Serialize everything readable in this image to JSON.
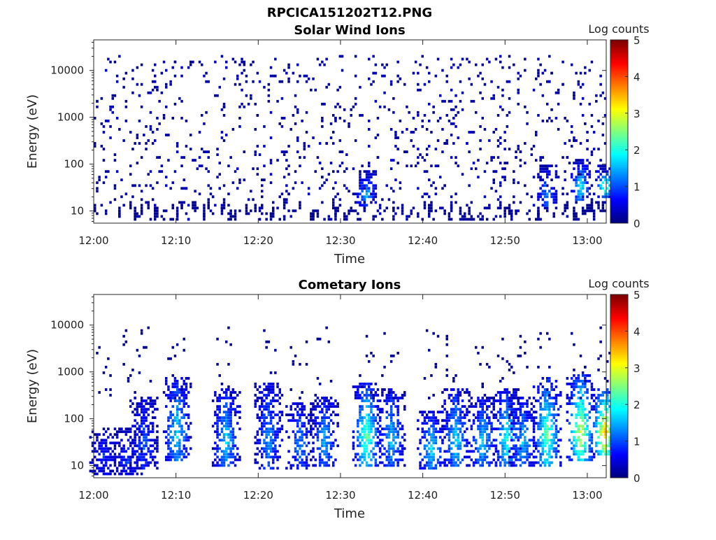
{
  "figure": {
    "title": "RPCICA151202T12.PNG"
  },
  "chart_data": [
    {
      "type": "heatmap",
      "title": "Solar Wind Ions",
      "xlabel": "Time",
      "ylabel": "Energy (eV)",
      "x_range": [
        "12:00",
        "13:02"
      ],
      "xticks": [
        "12:00",
        "12:10",
        "12:20",
        "12:30",
        "12:40",
        "12:50",
        "13:00"
      ],
      "yscale": "log",
      "ylim": [
        5.5,
        45000
      ],
      "yticks": [
        "10",
        "100",
        "1000",
        "10000"
      ],
      "colorbar": {
        "label": "Log counts",
        "range": [
          0,
          5
        ],
        "ticks": [
          "0",
          "1",
          "2",
          "3",
          "4",
          "5"
        ],
        "colormap": "jet"
      },
      "description_features": [
        {
          "time": "12:33",
          "energy_eV": [
            15,
            45
          ],
          "log_counts": 1.5
        },
        {
          "time": "12:55",
          "energy_eV": [
            15,
            60
          ],
          "log_counts": 1.2
        },
        {
          "time": "12:59",
          "energy_eV": [
            20,
            80
          ],
          "log_counts": 1.8
        },
        {
          "time": "13:02",
          "energy_eV": [
            25,
            60
          ],
          "log_counts": 2.5
        }
      ],
      "background": {
        "energy_eV": [
          6,
          20000
        ],
        "log_counts": 0.1
      }
    },
    {
      "type": "heatmap",
      "title": "Cometary Ions",
      "xlabel": "Time",
      "ylabel": "Energy (eV)",
      "x_range": [
        "12:00",
        "13:02"
      ],
      "xticks": [
        "12:00",
        "12:10",
        "12:20",
        "12:30",
        "12:40",
        "12:50",
        "13:00"
      ],
      "yscale": "log",
      "ylim": [
        5.5,
        45000
      ],
      "yticks": [
        "10",
        "100",
        "1000",
        "10000"
      ],
      "colorbar": {
        "label": "Log counts",
        "range": [
          0,
          5
        ],
        "ticks": [
          "0",
          "1",
          "2",
          "3",
          "4",
          "5"
        ],
        "colormap": "jet"
      },
      "bursts": [
        {
          "time": "12:01",
          "energy_eV": [
            8,
            40
          ],
          "log_counts": 0.6
        },
        {
          "time": "12:04",
          "energy_eV": [
            8,
            40
          ],
          "log_counts": 0.7
        },
        {
          "time": "12:06",
          "energy_eV": [
            10,
            200
          ],
          "log_counts": 0.8
        },
        {
          "time": "12:10",
          "energy_eV": [
            15,
            500
          ],
          "log_counts": 1.6
        },
        {
          "time": "12:16",
          "energy_eV": [
            12,
            300
          ],
          "log_counts": 1.5
        },
        {
          "time": "12:21",
          "energy_eV": [
            10,
            400
          ],
          "log_counts": 1.2
        },
        {
          "time": "12:25",
          "energy_eV": [
            10,
            150
          ],
          "log_counts": 1.1
        },
        {
          "time": "12:28",
          "energy_eV": [
            12,
            200
          ],
          "log_counts": 1.3
        },
        {
          "time": "12:33",
          "energy_eV": [
            12,
            400
          ],
          "log_counts": 2.3
        },
        {
          "time": "12:36",
          "energy_eV": [
            12,
            300
          ],
          "log_counts": 1.4
        },
        {
          "time": "12:41",
          "energy_eV": [
            10,
            100
          ],
          "log_counts": 1.6
        },
        {
          "time": "12:44",
          "energy_eV": [
            12,
            300
          ],
          "log_counts": 1.6
        },
        {
          "time": "12:47",
          "energy_eV": [
            12,
            200
          ],
          "log_counts": 1.5
        },
        {
          "time": "12:50",
          "energy_eV": [
            12,
            300
          ],
          "log_counts": 1.9
        },
        {
          "time": "12:52",
          "energy_eV": [
            12,
            200
          ],
          "log_counts": 1.4
        },
        {
          "time": "12:55",
          "energy_eV": [
            12,
            500
          ],
          "log_counts": 2.3
        },
        {
          "time": "12:59",
          "energy_eV": [
            15,
            600
          ],
          "log_counts": 2.8
        },
        {
          "time": "13:02",
          "energy_eV": [
            20,
            300
          ],
          "log_counts": 3.5
        }
      ]
    }
  ]
}
